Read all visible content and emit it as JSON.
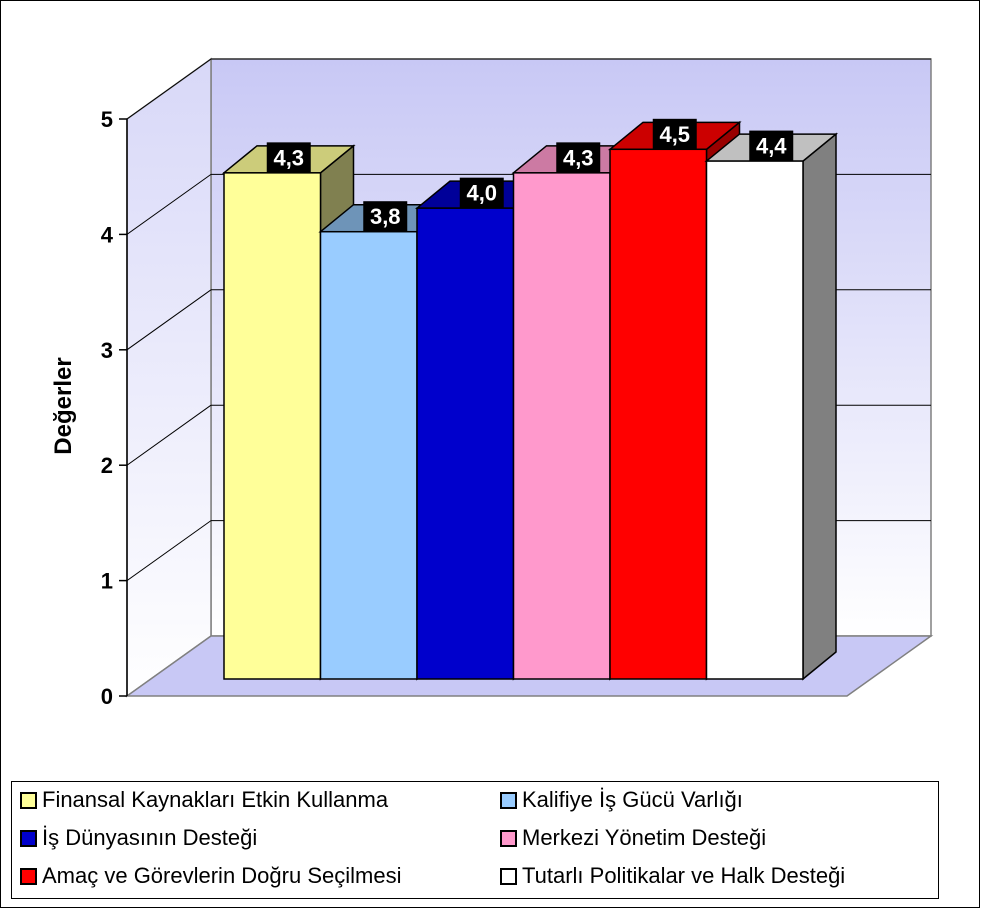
{
  "chart_data": {
    "type": "bar",
    "three_d": true,
    "title": "",
    "xlabel": "",
    "ylabel": "Değerler",
    "ylim": [
      0,
      5
    ],
    "yticks": [
      "0",
      "1",
      "2",
      "3",
      "4",
      "5"
    ],
    "grid": true,
    "legend_position": "bottom",
    "series": [
      {
        "name": "Finansal Kaynakları Etkin Kullanma",
        "value": 4.3,
        "label": "4,3",
        "color": "#ffff99",
        "side_color": "#808050",
        "top_color": "#cccc7a"
      },
      {
        "name": "Kalifiye İş Gücü Varlığı",
        "value": 3.8,
        "label": "3,8",
        "color": "#99ccff",
        "side_color": "#5a7c9c",
        "top_color": "#6e94b8"
      },
      {
        "name": "İş Dünyasının Desteği",
        "value": 4.0,
        "label": "4,0",
        "color": "#0000cc",
        "side_color": "#000080",
        "top_color": "#000099"
      },
      {
        "name": "Merkezi Yönetim Desteği",
        "value": 4.3,
        "label": "4,3",
        "color": "#ff99cc",
        "side_color": "#995c7a",
        "top_color": "#cc7aa3"
      },
      {
        "name": "Amaç ve Görevlerin Doğru Seçilmesi",
        "value": 4.5,
        "label": "4,5",
        "color": "#ff0000",
        "side_color": "#990000",
        "top_color": "#cc0000"
      },
      {
        "name": "Tutarlı Politikalar ve Halk Desteği",
        "value": 4.4,
        "label": "4,4",
        "color": "#ffffff",
        "side_color": "#808080",
        "top_color": "#c0c0c0"
      }
    ],
    "wall_color_top": "#c8c8f5",
    "wall_color_bottom": "#ffffff",
    "floor_color": "#c8c8f5"
  }
}
